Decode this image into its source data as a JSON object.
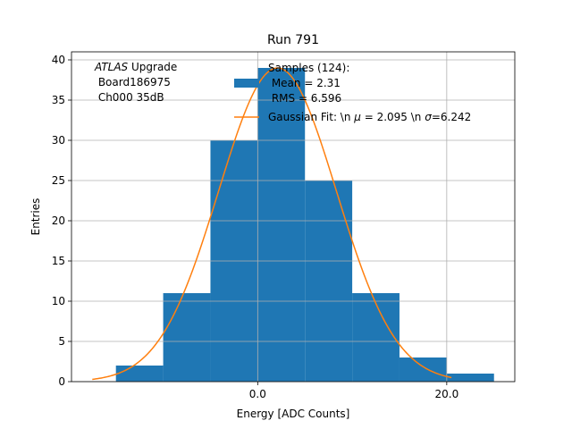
{
  "chart_data": {
    "type": "bar",
    "title": "Run 791",
    "xlabel": "Energy [ADC Counts]",
    "ylabel": "Entries",
    "xlim": [
      -19.7,
      27.2
    ],
    "ylim": [
      0,
      41
    ],
    "x_ticks": [
      0.0,
      20.0
    ],
    "x_tick_labels": [
      "0.0",
      "20.0"
    ],
    "y_ticks": [
      0,
      5,
      10,
      15,
      20,
      25,
      30,
      35,
      40
    ],
    "grid": true,
    "histogram": {
      "bin_edges": [
        -15,
        -10,
        -5,
        0,
        5,
        10,
        15,
        20,
        25
      ],
      "values": [
        2,
        11,
        30,
        39,
        25,
        11,
        3,
        1
      ],
      "color": "#1f77b4"
    },
    "fit": {
      "mu": 2.095,
      "sigma": 6.242,
      "amplitude": 39,
      "x_range": [
        -17.5,
        20.5
      ],
      "color": "#ff7f0e"
    },
    "annotation": {
      "line1_italic": "ATLAS",
      "line1_rest": " Upgrade",
      "line2": " Board186975",
      "line3": " Ch000 35dB"
    },
    "legend": {
      "placement": "top-right",
      "samples_line1": "Samples (124):",
      "samples_line2": " Mean = 2.31",
      "samples_line3": " RMS = 6.596",
      "fit_label_part1": "Gaussian Fit: \\n ",
      "fit_label_mu": "μ",
      "fit_label_part2": " = 2.095 \\n ",
      "fit_label_sigma": "σ",
      "fit_label_part3": "=6.242"
    }
  }
}
